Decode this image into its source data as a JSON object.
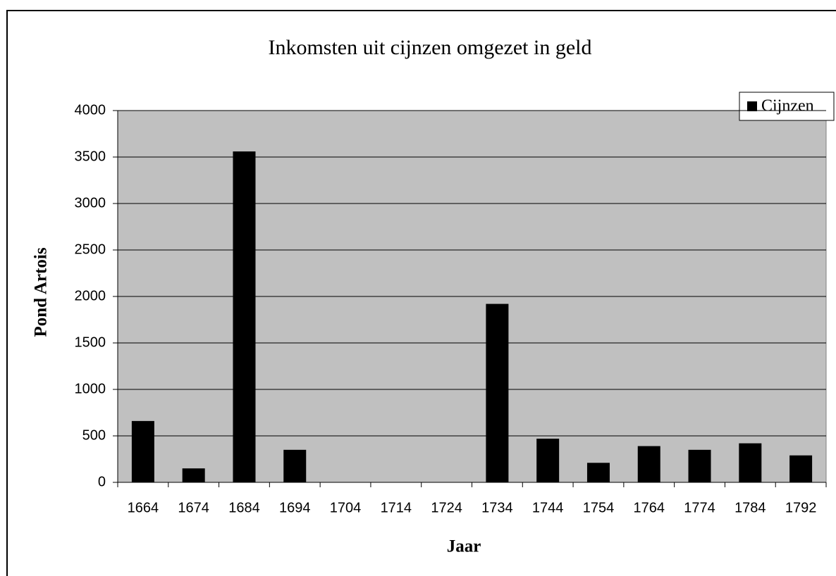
{
  "chart_data": {
    "type": "bar",
    "title": "Inkomsten uit cijnzen omgezet in geld",
    "x_label": "Jaar",
    "y_label": "Pond Artois",
    "categories": [
      "1664",
      "1674",
      "1684",
      "1694",
      "1704",
      "1714",
      "1724",
      "1734",
      "1744",
      "1754",
      "1764",
      "1774",
      "1784",
      "1792"
    ],
    "series": [
      {
        "name": "Cijnzen",
        "color": "#000000",
        "values": [
          660,
          150,
          3560,
          350,
          0,
          0,
          0,
          1920,
          470,
          210,
          390,
          350,
          420,
          290
        ]
      }
    ],
    "ylim": [
      0,
      4000
    ],
    "yticks": [
      0,
      500,
      1000,
      1500,
      2000,
      2500,
      3000,
      3500,
      4000
    ],
    "grid": true,
    "legend": "top-right"
  }
}
